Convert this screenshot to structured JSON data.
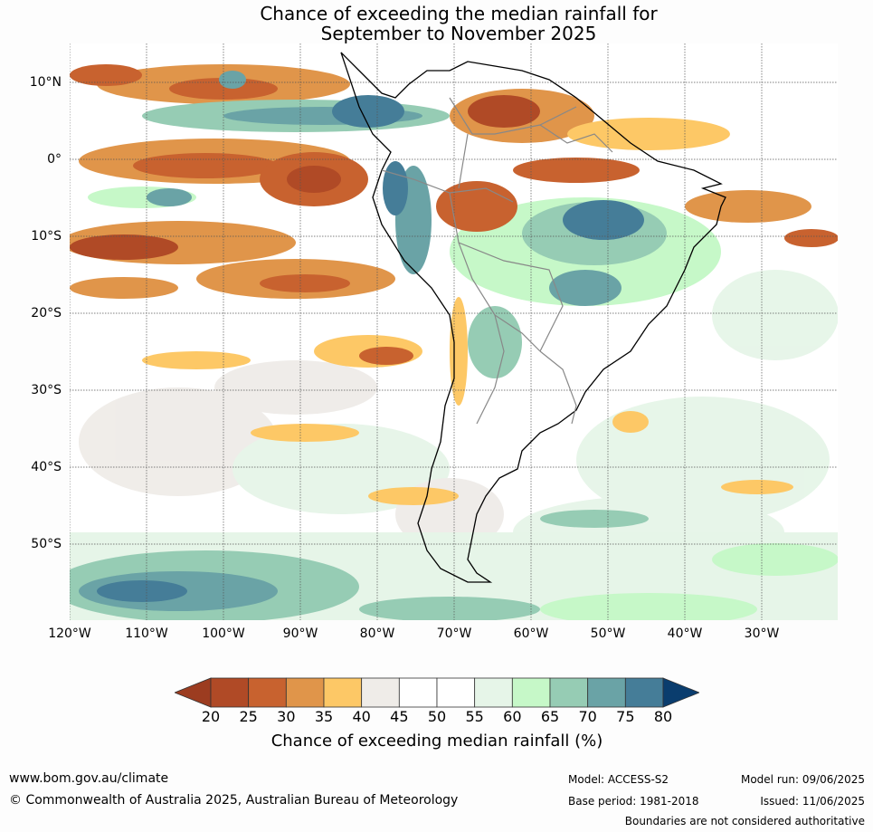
{
  "title_line1": "Chance of exceeding the median rainfall for",
  "title_line2": "September to November 2025",
  "map": {
    "lat_labels": [
      "10°N",
      "0°",
      "10°S",
      "20°S",
      "30°S",
      "40°S",
      "50°S"
    ],
    "lon_labels": [
      "120°W",
      "110°W",
      "100°W",
      "90°W",
      "80°W",
      "70°W",
      "60°W",
      "50°W",
      "40°W",
      "30°W"
    ]
  },
  "legend": {
    "title": "Chance of exceeding median rainfall (%)",
    "ticks": [
      "20",
      "25",
      "30",
      "35",
      "40",
      "45",
      "50",
      "55",
      "60",
      "65",
      "70",
      "75",
      "80"
    ],
    "colors": [
      "#9c3c20",
      "#b04a26",
      "#c8622f",
      "#e0954a",
      "#fdc866",
      "#efece8",
      "#ffffff",
      "#ffffff",
      "#e6f5e8",
      "#c6f8c8",
      "#96ccb4",
      "#6aa3a6",
      "#457d98",
      "#0e4a80",
      "#0a3d6e"
    ]
  },
  "footer": {
    "url": "www.bom.gov.au/climate",
    "copyright": "© Commonwealth of Australia 2025, Australian Bureau of Meteorology",
    "model": "Model: ACCESS-S2",
    "base_period": "Base period: 1981-2018",
    "model_run": "Model run: 09/06/2025",
    "issued": "Issued: 11/06/2025",
    "boundaries": "Boundaries are not considered authoritative"
  }
}
